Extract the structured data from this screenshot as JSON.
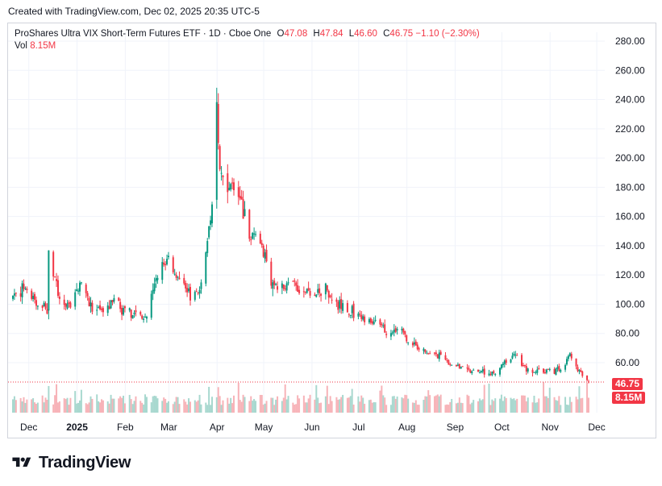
{
  "caption": "Created with TradingView.com, Dec 02, 2025 20:35 UTC-5",
  "legend": {
    "title": "ProShares Ultra VIX Short-Term Futures ETF · 1D · Cboe One",
    "open_label": "O",
    "open": "47.08",
    "high_label": "H",
    "high": "47.84",
    "low_label": "L",
    "low": "46.60",
    "close_label": "C",
    "close": "46.75",
    "change": "−1.10 (−2.30%)",
    "vol_label": "Vol",
    "vol": "8.15M"
  },
  "badges": {
    "price": "46.75",
    "volume": "8.15M"
  },
  "brand": "TradingView",
  "colors": {
    "up": "#089981",
    "down": "#f23645",
    "vol_up": "#a8d8cf",
    "vol_down": "#f7b3b8",
    "grid": "#f0f3fa",
    "text": "#131722"
  },
  "chart_data": {
    "type": "candlestick",
    "ylim": [
      40,
      280
    ],
    "y_ticks": [
      "280.00",
      "260.00",
      "240.00",
      "220.00",
      "200.00",
      "180.00",
      "160.00",
      "140.00",
      "120.00",
      "100.00",
      "80.00",
      "60.00"
    ],
    "x_ticks": [
      "Dec",
      "2025",
      "Feb",
      "Mar",
      "Apr",
      "May",
      "Jun",
      "Jul",
      "Aug",
      "Sep",
      "Oct",
      "Nov",
      "Dec"
    ],
    "last_price": 46.75,
    "last_volume": "8.15M",
    "approx_path": [
      [
        "2024-11-27",
        104
      ],
      [
        "2024-12-05",
        112
      ],
      [
        "2024-12-12",
        100
      ],
      [
        "2024-12-19",
        96
      ],
      [
        "2024-12-20",
        135
      ],
      [
        "2024-12-27",
        103
      ],
      [
        "2025-01-03",
        100
      ],
      [
        "2025-01-10",
        116
      ],
      [
        "2025-01-17",
        96
      ],
      [
        "2025-01-24",
        94
      ],
      [
        "2025-01-31",
        105
      ],
      [
        "2025-02-07",
        94
      ],
      [
        "2025-02-14",
        92
      ],
      [
        "2025-02-21",
        92
      ],
      [
        "2025-02-28",
        120
      ],
      [
        "2025-03-07",
        132
      ],
      [
        "2025-03-14",
        113
      ],
      [
        "2025-03-21",
        106
      ],
      [
        "2025-03-28",
        110
      ],
      [
        "2025-04-04",
        165
      ],
      [
        "2025-04-07",
        245
      ],
      [
        "2025-04-09",
        190
      ],
      [
        "2025-04-14",
        185
      ],
      [
        "2025-04-21",
        175
      ],
      [
        "2025-04-28",
        150
      ],
      [
        "2025-05-05",
        143
      ],
      [
        "2025-05-12",
        115
      ],
      [
        "2025-05-19",
        112
      ],
      [
        "2025-05-26",
        115
      ],
      [
        "2025-06-02",
        109
      ],
      [
        "2025-06-09",
        104
      ],
      [
        "2025-06-16",
        112
      ],
      [
        "2025-06-23",
        100
      ],
      [
        "2025-06-30",
        96
      ],
      [
        "2025-07-07",
        92
      ],
      [
        "2025-07-14",
        88
      ],
      [
        "2025-07-21",
        85
      ],
      [
        "2025-07-28",
        80
      ],
      [
        "2025-08-01",
        86
      ],
      [
        "2025-08-08",
        74
      ],
      [
        "2025-08-15",
        70
      ],
      [
        "2025-08-22",
        66
      ],
      [
        "2025-08-29",
        64
      ],
      [
        "2025-09-05",
        58
      ],
      [
        "2025-09-12",
        56
      ],
      [
        "2025-09-19",
        53
      ],
      [
        "2025-09-26",
        54
      ],
      [
        "2025-10-03",
        53
      ],
      [
        "2025-10-10",
        60
      ],
      [
        "2025-10-16",
        66
      ],
      [
        "2025-10-20",
        58
      ],
      [
        "2025-10-27",
        53
      ],
      [
        "2025-11-03",
        55
      ],
      [
        "2025-11-10",
        54
      ],
      [
        "2025-11-17",
        60
      ],
      [
        "2025-11-20",
        67
      ],
      [
        "2025-11-24",
        56
      ],
      [
        "2025-11-28",
        50
      ],
      [
        "2025-12-02",
        46.75
      ]
    ]
  }
}
